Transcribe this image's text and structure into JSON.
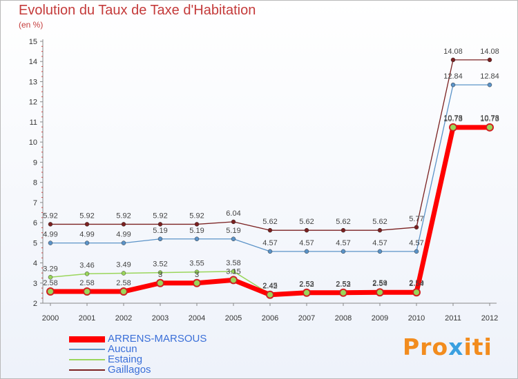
{
  "chart_title": "Evolution du Taux de Taxe d'Habitation",
  "chart_subtitle": "(en %)",
  "brand": {
    "parts": [
      "Pro",
      "x",
      "iti"
    ],
    "colors": [
      "#f28c1e",
      "#3aa0e0"
    ]
  },
  "chart_data": {
    "type": "line",
    "title": "Evolution du Taux de Taxe d'Habitation",
    "ylabel": "(en %)",
    "xlabel": "",
    "ylim": [
      2,
      15
    ],
    "yticks": [
      "2",
      "3",
      "4",
      "5",
      "6",
      "7",
      "8",
      "9",
      "10",
      "11",
      "12",
      "13",
      "14",
      "15"
    ],
    "categories": [
      "2000",
      "2001",
      "2002",
      "2003",
      "2004",
      "2005",
      "2006",
      "2007",
      "2008",
      "2009",
      "2010",
      "2011",
      "2012"
    ],
    "series": [
      {
        "name": "Gaillagos",
        "color": "#7a2020",
        "values": [
          5.92,
          5.92,
          5.92,
          5.92,
          5.92,
          6.04,
          5.62,
          5.62,
          5.62,
          5.62,
          5.77,
          14.08,
          14.08
        ],
        "labels": [
          "5.92",
          "5.92",
          "5.92",
          "5.92",
          "5.92",
          "6.04",
          "5.62",
          "5.62",
          "5.62",
          "5.62",
          "5.77",
          "14.08",
          "14.08"
        ]
      },
      {
        "name": "Aucun",
        "color": "#5b93c8",
        "values": [
          4.99,
          4.99,
          4.99,
          5.19,
          5.19,
          5.19,
          4.57,
          4.57,
          4.57,
          4.57,
          4.57,
          12.84,
          12.84
        ],
        "labels": [
          "4.99",
          "4.99",
          "4.99",
          "5.19",
          "5.19",
          "5.19",
          "4.57",
          "4.57",
          "4.57",
          "4.57",
          "4.57",
          "12.84",
          "12.84"
        ]
      },
      {
        "name": "Estaing",
        "color": "#9ad65a",
        "values": [
          3.29,
          3.46,
          3.49,
          3.52,
          3.55,
          3.58,
          2.45,
          2.53,
          2.53,
          2.59,
          2.59,
          10.78,
          10.78
        ],
        "labels": [
          "3.29",
          "3.46",
          "3.49",
          "3.52",
          "3.55",
          "3.58",
          "2.45",
          "2.53",
          "2.53",
          "2.59",
          "2.59",
          "10.78",
          "10.78"
        ]
      },
      {
        "name": "ARRENS-MARSOUS",
        "color": "#ff0000",
        "values": [
          2.58,
          2.58,
          2.58,
          3.0,
          3.0,
          3.15,
          2.42,
          2.52,
          2.52,
          2.54,
          2.54,
          10.73,
          10.73
        ],
        "labels": [
          "2.58",
          "2.58",
          "2.58",
          "3",
          "3",
          "3.15",
          "2.42",
          "2.52",
          "2.52",
          "2.54",
          "2.54",
          "10.73",
          "10.73"
        ]
      }
    ],
    "legend": [
      "ARRENS-MARSOUS",
      "Aucun",
      "Estaing",
      "Gaillagos"
    ],
    "legend_position": "bottom-left",
    "grid": false
  }
}
